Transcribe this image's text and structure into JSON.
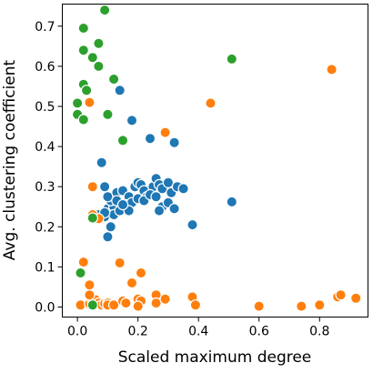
{
  "chart_data": {
    "type": "scatter",
    "title": "",
    "xlabel": "Scaled maximum degree",
    "ylabel": "Avg. clustering coefficient",
    "xlim": [
      -0.05,
      0.96
    ],
    "ylim": [
      -0.025,
      0.755
    ],
    "x_ticks": [
      {
        "value": 0.0,
        "label": "0.0"
      },
      {
        "value": 0.2,
        "label": "0.2"
      },
      {
        "value": 0.4,
        "label": "0.4"
      },
      {
        "value": 0.6,
        "label": "0.6"
      },
      {
        "value": 0.8,
        "label": "0.8"
      }
    ],
    "y_ticks": [
      {
        "value": 0.0,
        "label": "0.0"
      },
      {
        "value": 0.1,
        "label": "0.1"
      },
      {
        "value": 0.2,
        "label": "0.2"
      },
      {
        "value": 0.3,
        "label": "0.3"
      },
      {
        "value": 0.4,
        "label": "0.4"
      },
      {
        "value": 0.5,
        "label": "0.5"
      },
      {
        "value": 0.6,
        "label": "0.6"
      },
      {
        "value": 0.7,
        "label": "0.7"
      }
    ],
    "grid": false,
    "legend": "none",
    "series": [
      {
        "color": "#1f77b4",
        "points": [
          [
            0.14,
            0.54
          ],
          [
            0.18,
            0.465
          ],
          [
            0.24,
            0.42
          ],
          [
            0.32,
            0.41
          ],
          [
            0.08,
            0.36
          ],
          [
            0.07,
            0.23
          ],
          [
            0.05,
            0.23
          ],
          [
            0.09,
            0.225
          ],
          [
            0.06,
            0.22
          ],
          [
            0.1,
            0.245
          ],
          [
            0.12,
            0.25
          ],
          [
            0.11,
            0.265
          ],
          [
            0.13,
            0.285
          ],
          [
            0.15,
            0.29
          ],
          [
            0.17,
            0.275
          ],
          [
            0.19,
            0.3
          ],
          [
            0.2,
            0.31
          ],
          [
            0.21,
            0.305
          ],
          [
            0.22,
            0.29
          ],
          [
            0.23,
            0.275
          ],
          [
            0.25,
            0.3
          ],
          [
            0.26,
            0.32
          ],
          [
            0.27,
            0.305
          ],
          [
            0.28,
            0.295
          ],
          [
            0.3,
            0.31
          ],
          [
            0.31,
            0.285
          ],
          [
            0.33,
            0.3
          ],
          [
            0.35,
            0.295
          ],
          [
            0.1,
            0.275
          ],
          [
            0.12,
            0.23
          ],
          [
            0.14,
            0.24
          ],
          [
            0.16,
            0.255
          ],
          [
            0.18,
            0.26
          ],
          [
            0.2,
            0.27
          ],
          [
            0.22,
            0.265
          ],
          [
            0.24,
            0.28
          ],
          [
            0.26,
            0.275
          ],
          [
            0.28,
            0.25
          ],
          [
            0.3,
            0.26
          ],
          [
            0.09,
            0.3
          ],
          [
            0.11,
            0.2
          ],
          [
            0.17,
            0.24
          ],
          [
            0.13,
            0.265
          ],
          [
            0.15,
            0.255
          ],
          [
            0.32,
            0.245
          ],
          [
            0.27,
            0.24
          ],
          [
            0.38,
            0.205
          ],
          [
            0.51,
            0.262
          ],
          [
            0.09,
            0.235
          ],
          [
            0.1,
            0.175
          ]
        ]
      },
      {
        "color": "#ff7f0e",
        "points": [
          [
            0.84,
            0.592
          ],
          [
            0.44,
            0.508
          ],
          [
            0.29,
            0.435
          ],
          [
            0.04,
            0.51
          ],
          [
            0.05,
            0.3
          ],
          [
            0.05,
            0.23
          ],
          [
            0.07,
            0.22
          ],
          [
            0.02,
            0.112
          ],
          [
            0.14,
            0.11
          ],
          [
            0.21,
            0.085
          ],
          [
            0.18,
            0.06
          ],
          [
            0.04,
            0.055
          ],
          [
            0.01,
            0.005
          ],
          [
            0.04,
            0.008
          ],
          [
            0.05,
            0.012
          ],
          [
            0.06,
            0.018
          ],
          [
            0.07,
            0.01
          ],
          [
            0.08,
            0.005
          ],
          [
            0.09,
            0.008
          ],
          [
            0.1,
            0.01
          ],
          [
            0.1,
            0.005
          ],
          [
            0.12,
            0.005
          ],
          [
            0.15,
            0.015
          ],
          [
            0.16,
            0.01
          ],
          [
            0.2,
            0.02
          ],
          [
            0.21,
            0.015
          ],
          [
            0.26,
            0.03
          ],
          [
            0.26,
            0.01
          ],
          [
            0.29,
            0.02
          ],
          [
            0.38,
            0.025
          ],
          [
            0.39,
            0.005
          ],
          [
            0.6,
            0.002
          ],
          [
            0.74,
            0.002
          ],
          [
            0.8,
            0.005
          ],
          [
            0.86,
            0.025
          ],
          [
            0.87,
            0.03
          ],
          [
            0.92,
            0.022
          ],
          [
            0.04,
            0.03
          ],
          [
            0.2,
            0.002
          ]
        ]
      },
      {
        "color": "#2ca02c",
        "points": [
          [
            0.09,
            0.74
          ],
          [
            0.02,
            0.695
          ],
          [
            0.07,
            0.657
          ],
          [
            0.02,
            0.64
          ],
          [
            0.05,
            0.622
          ],
          [
            0.07,
            0.6
          ],
          [
            0.51,
            0.618
          ],
          [
            0.12,
            0.568
          ],
          [
            0.02,
            0.555
          ],
          [
            0.03,
            0.54
          ],
          [
            0.0,
            0.508
          ],
          [
            0.0,
            0.48
          ],
          [
            0.02,
            0.467
          ],
          [
            0.1,
            0.48
          ],
          [
            0.15,
            0.415
          ],
          [
            0.05,
            0.222
          ],
          [
            0.01,
            0.085
          ],
          [
            0.05,
            0.005
          ]
        ]
      }
    ]
  }
}
